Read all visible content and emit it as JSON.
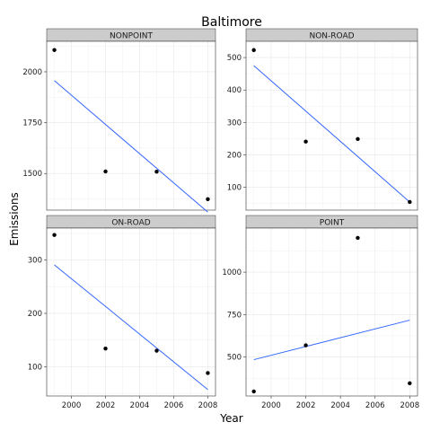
{
  "chart_data": {
    "type": "scatter",
    "title": "Baltimore",
    "xlabel": "Year",
    "ylabel": "Emissions",
    "grid": true,
    "legend": "none",
    "colors": {
      "point": "#000000",
      "fit": "#3366FF",
      "strip": "#CCCCCC",
      "border": "#333333",
      "grid_minor": "#F0F0F0",
      "grid_major": "#E6E6E6"
    },
    "xlim": [
      1998.55,
      2008.45
    ],
    "x_ticks": [
      2000,
      2002,
      2004,
      2006,
      2008
    ],
    "panels": [
      {
        "name": "NONPOINT",
        "x": [
          1999,
          2002,
          2005,
          2008
        ],
        "y": [
          2107,
          1510,
          1509,
          1374
        ],
        "fit": {
          "x": [
            1999,
            2008
          ],
          "y": [
            1957,
            1310
          ]
        },
        "ylim": [
          1320,
          2150
        ],
        "y_ticks": [
          1500,
          1750,
          2000
        ]
      },
      {
        "name": "NON-ROAD",
        "x": [
          1999,
          2002,
          2005,
          2008
        ],
        "y": [
          523,
          241,
          249,
          55
        ],
        "fit": {
          "x": [
            1999,
            2008
          ],
          "y": [
            475,
            55
          ]
        },
        "ylim": [
          30,
          550
        ],
        "y_ticks": [
          100,
          200,
          300,
          400,
          500
        ]
      },
      {
        "name": "ON-ROAD",
        "x": [
          1999,
          2002,
          2005,
          2008
        ],
        "y": [
          347,
          134,
          130,
          88
        ],
        "fit": {
          "x": [
            1999,
            2008
          ],
          "y": [
            291,
            57
          ]
        },
        "ylim": [
          45,
          360
        ],
        "y_ticks": [
          100,
          200,
          300
        ]
      },
      {
        "name": "POINT",
        "x": [
          1999,
          2002,
          2005,
          2008
        ],
        "y": [
          297,
          569,
          1202,
          345
        ],
        "fit": {
          "x": [
            1999,
            2008
          ],
          "y": [
            484,
            717
          ]
        },
        "ylim": [
          270,
          1260
        ],
        "y_ticks": [
          500,
          750,
          1000
        ]
      }
    ]
  }
}
